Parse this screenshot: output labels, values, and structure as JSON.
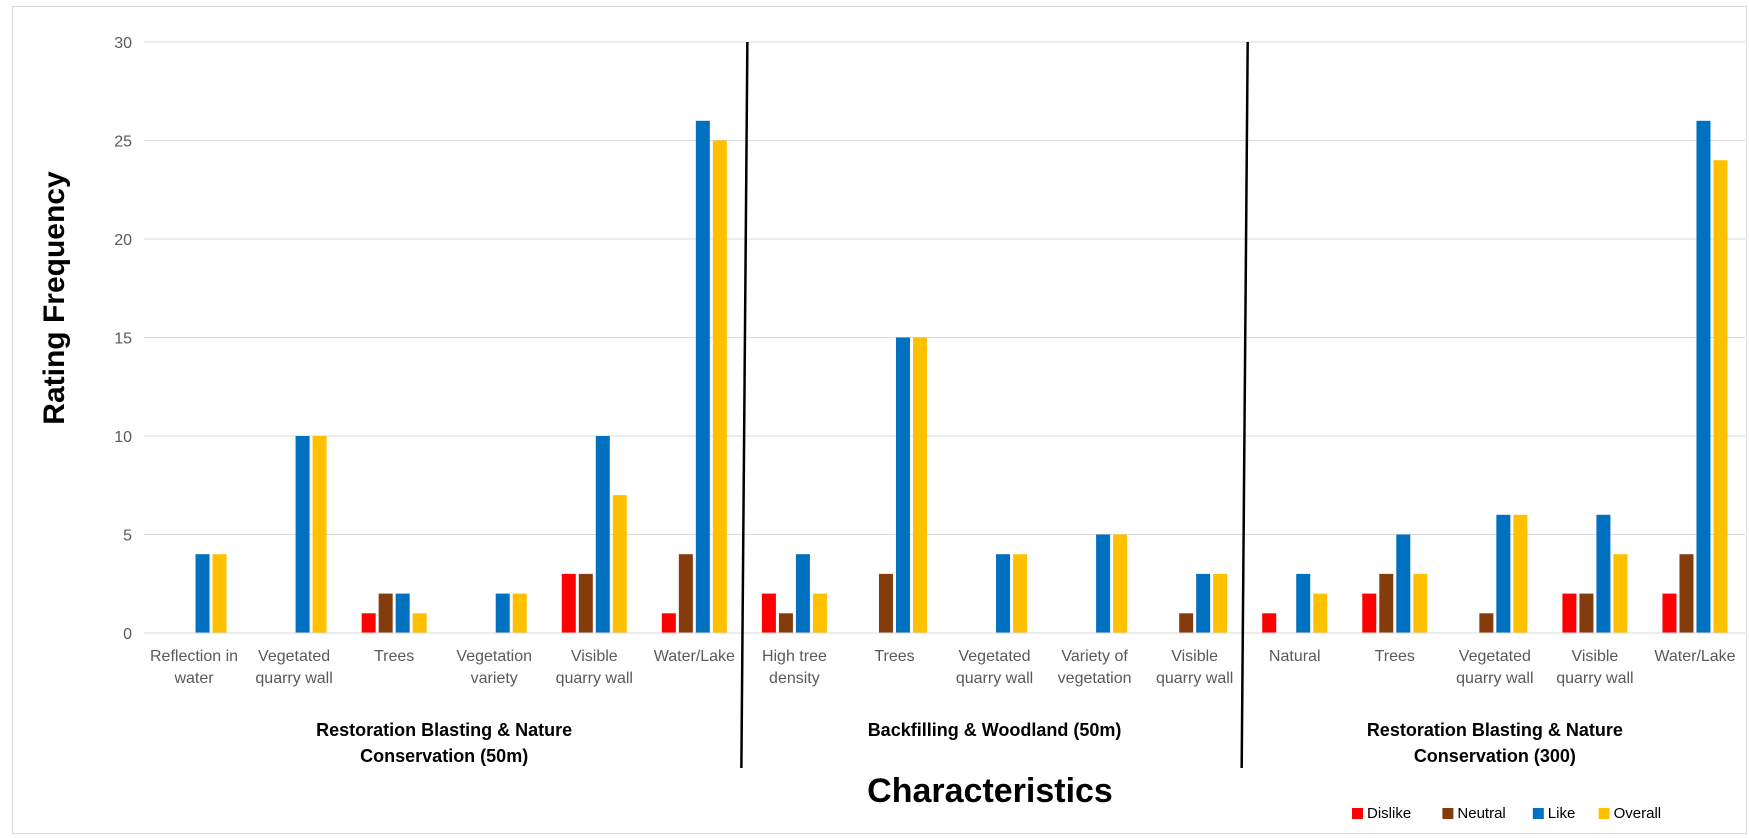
{
  "chart_data": {
    "type": "bar",
    "title": "",
    "xlabel": "Characteristics",
    "ylabel": "Rating Frequency",
    "ylim": [
      0,
      30
    ],
    "yticks": [
      0,
      5,
      10,
      15,
      20,
      25,
      30
    ],
    "grid": true,
    "legend_position": "bottom-right",
    "series": [
      {
        "name": "Dislike",
        "color": "#ff0000"
      },
      {
        "name": "Neutral",
        "color": "#843c0c"
      },
      {
        "name": "Like",
        "color": "#0070c0"
      },
      {
        "name": "Overall",
        "color": "#ffc000"
      }
    ],
    "groups": [
      {
        "label": "Restoration Blasting & Nature Conservation (50m)",
        "label_lines": [
          "Restoration Blasting & Nature",
          "Conservation (50m)"
        ],
        "categories": [
          {
            "label": "Reflection in water",
            "label_lines": [
              "Reflection in",
              "water"
            ],
            "values": [
              0,
              0,
              4,
              4
            ]
          },
          {
            "label": "Vegetated quarry wall",
            "label_lines": [
              "Vegetated",
              "quarry wall"
            ],
            "values": [
              0,
              0,
              10,
              10
            ]
          },
          {
            "label": "Trees",
            "label_lines": [
              "Trees"
            ],
            "values": [
              1,
              2,
              2,
              1
            ]
          },
          {
            "label": "Vegetation variety",
            "label_lines": [
              "Vegetation",
              "variety"
            ],
            "values": [
              0,
              0,
              2,
              2
            ]
          },
          {
            "label": "Visible quarry wall",
            "label_lines": [
              "Visible",
              "quarry wall"
            ],
            "values": [
              3,
              3,
              10,
              7
            ]
          },
          {
            "label": "Water/Lake",
            "label_lines": [
              "Water/Lake"
            ],
            "values": [
              1,
              4,
              26,
              25
            ]
          }
        ]
      },
      {
        "label": "Backfilling & Woodland (50m)",
        "label_lines": [
          "Backfilling & Woodland (50m)"
        ],
        "categories": [
          {
            "label": "High tree density",
            "label_lines": [
              "High tree",
              "density"
            ],
            "values": [
              2,
              1,
              4,
              2
            ]
          },
          {
            "label": "Trees",
            "label_lines": [
              "Trees"
            ],
            "values": [
              0,
              3,
              15,
              15
            ]
          },
          {
            "label": "Vegetated quarry wall",
            "label_lines": [
              "Vegetated",
              "quarry wall"
            ],
            "values": [
              0,
              0,
              4,
              4
            ]
          },
          {
            "label": "Variety of vegetation",
            "label_lines": [
              "Variety of",
              "vegetation"
            ],
            "values": [
              0,
              0,
              5,
              5
            ]
          },
          {
            "label": "Visible quarry wall",
            "label_lines": [
              "Visible",
              "quarry wall"
            ],
            "values": [
              0,
              1,
              3,
              3
            ]
          }
        ]
      },
      {
        "label": "Restoration Blasting & Nature Conservation (300)",
        "label_lines": [
          "Restoration Blasting & Nature",
          "Conservation (300)"
        ],
        "categories": [
          {
            "label": "Natural",
            "label_lines": [
              "Natural"
            ],
            "values": [
              1,
              0,
              3,
              2
            ]
          },
          {
            "label": "Trees",
            "label_lines": [
              "Trees"
            ],
            "values": [
              2,
              3,
              5,
              3
            ]
          },
          {
            "label": "Vegetated quarry wall",
            "label_lines": [
              "Vegetated",
              "quarry wall"
            ],
            "values": [
              0,
              1,
              6,
              6
            ]
          },
          {
            "label": "Visible quarry wall",
            "label_lines": [
              "Visible",
              "quarry wall"
            ],
            "values": [
              2,
              2,
              6,
              4
            ]
          },
          {
            "label": "Water/Lake",
            "label_lines": [
              "Water/Lake"
            ],
            "values": [
              2,
              4,
              26,
              24
            ]
          }
        ]
      }
    ]
  }
}
